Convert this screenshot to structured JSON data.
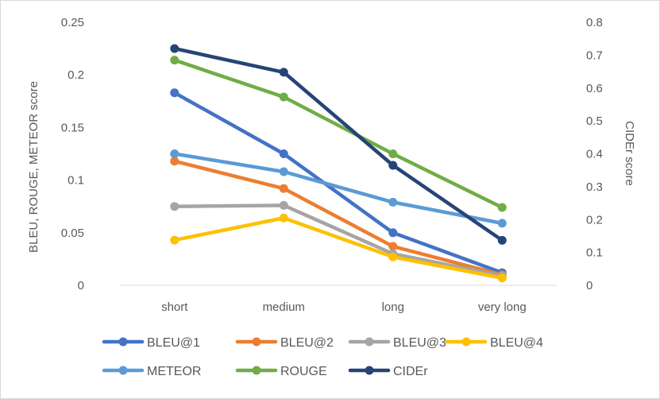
{
  "chart_data": {
    "type": "line",
    "title": "",
    "categories": [
      "short",
      "medium",
      "long",
      "very long"
    ],
    "ylabel_left": "BLEU, ROUGE, METEOR score",
    "ylabel_right": "CIDEr score",
    "ylim_left": [
      0,
      0.25
    ],
    "ylim_right": [
      0,
      0.8
    ],
    "yticks_left": [
      "0",
      "0.05",
      "0.1",
      "0.15",
      "0.2",
      "0.25"
    ],
    "yticks_right": [
      "0",
      "0.1",
      "0.2",
      "0.3",
      "0.4",
      "0.5",
      "0.6",
      "0.7",
      "0.8"
    ],
    "grid": false,
    "legend_position": "bottom",
    "series": [
      {
        "name": "BLEU@1",
        "axis": "left",
        "color": "#4472C4",
        "values": [
          0.183,
          0.125,
          0.05,
          0.012
        ]
      },
      {
        "name": "BLEU@2",
        "axis": "left",
        "color": "#ED7D31",
        "values": [
          0.118,
          0.092,
          0.037,
          0.01
        ]
      },
      {
        "name": "BLEU@3",
        "axis": "left",
        "color": "#A5A5A5",
        "values": [
          0.075,
          0.076,
          0.03,
          0.009
        ]
      },
      {
        "name": "BLEU@4",
        "axis": "left",
        "color": "#FFC000",
        "values": [
          0.043,
          0.064,
          0.027,
          0.007
        ]
      },
      {
        "name": "METEOR",
        "axis": "left",
        "color": "#5B9BD5",
        "values": [
          0.125,
          0.108,
          0.079,
          0.059
        ]
      },
      {
        "name": "ROUGE",
        "axis": "left",
        "color": "#70AD47",
        "values": [
          0.214,
          0.179,
          0.125,
          0.074
        ]
      },
      {
        "name": "CIDEr",
        "axis": "right",
        "color": "#264478",
        "values": [
          0.72,
          0.648,
          0.365,
          0.137
        ]
      }
    ]
  }
}
